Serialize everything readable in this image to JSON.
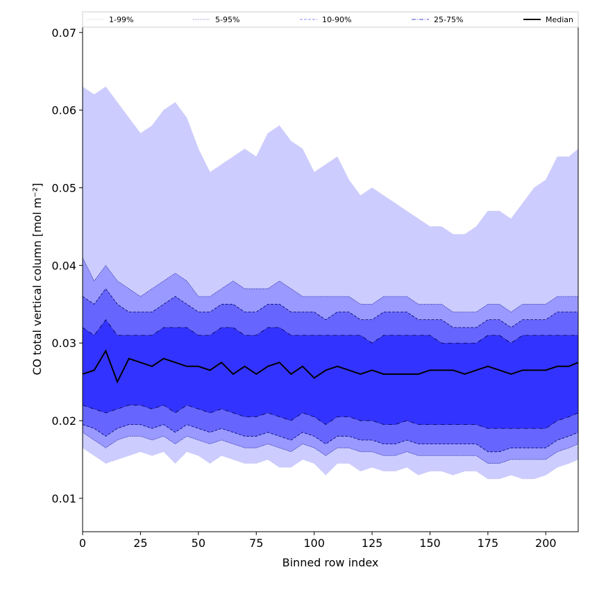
{
  "chart_data": {
    "type": "area",
    "title": "",
    "xlabel": "Binned row index",
    "ylabel": "CO total vertical column [mol m⁻²]",
    "xlim": [
      0,
      214
    ],
    "ylim": [
      0.0057,
      0.0707
    ],
    "x_ticks": [
      0,
      25,
      50,
      75,
      100,
      125,
      150,
      175,
      200
    ],
    "x_tick_labels": [
      "0",
      "25",
      "50",
      "75",
      "100",
      "125",
      "150",
      "175",
      "200"
    ],
    "y_ticks": [
      0.01,
      0.02,
      0.03,
      0.04,
      0.05,
      0.06,
      0.07
    ],
    "y_tick_labels": [
      "0.01",
      "0.02",
      "0.03",
      "0.04",
      "0.05",
      "0.06",
      "0.07"
    ],
    "grid": false,
    "legend_position": "top",
    "legend": [
      {
        "label": "1-99%",
        "color": "#ccccff",
        "style": "dotted"
      },
      {
        "label": "5-95%",
        "color": "#9999ff",
        "style": "dotted"
      },
      {
        "label": "10-90%",
        "color": "#6666ff",
        "style": "dashed"
      },
      {
        "label": "25-75%",
        "color": "#3333ff",
        "style": "dashdot"
      },
      {
        "label": "Median",
        "color": "#000000",
        "style": "solid"
      }
    ],
    "colors": {
      "band_1_99": "#ccccff",
      "band_5_95": "#9999ff",
      "band_10_90": "#6666ff",
      "band_25_75": "#3333ff",
      "median": "#000000"
    },
    "bin_width": 5,
    "x": [
      0,
      5,
      10,
      15,
      20,
      25,
      30,
      35,
      40,
      45,
      50,
      55,
      60,
      65,
      70,
      75,
      80,
      85,
      90,
      95,
      100,
      105,
      110,
      115,
      120,
      125,
      130,
      135,
      140,
      145,
      150,
      155,
      160,
      165,
      170,
      175,
      180,
      185,
      190,
      195,
      200,
      205,
      210,
      214
    ],
    "series": [
      {
        "name": "1-99%",
        "lower": [
          0.0165,
          0.0155,
          0.0145,
          0.015,
          0.0155,
          0.016,
          0.0155,
          0.016,
          0.0145,
          0.016,
          0.0155,
          0.0145,
          0.0155,
          0.015,
          0.0145,
          0.0145,
          0.015,
          0.014,
          0.014,
          0.015,
          0.0145,
          0.013,
          0.0145,
          0.0145,
          0.0135,
          0.014,
          0.0135,
          0.0135,
          0.014,
          0.013,
          0.0135,
          0.0135,
          0.013,
          0.0135,
          0.0135,
          0.0125,
          0.0125,
          0.013,
          0.0125,
          0.0125,
          0.013,
          0.014,
          0.0145,
          0.015
        ],
        "upper": [
          0.063,
          0.062,
          0.063,
          0.061,
          0.059,
          0.057,
          0.058,
          0.06,
          0.061,
          0.059,
          0.055,
          0.052,
          0.053,
          0.054,
          0.055,
          0.054,
          0.057,
          0.058,
          0.056,
          0.055,
          0.052,
          0.053,
          0.054,
          0.051,
          0.049,
          0.05,
          0.049,
          0.048,
          0.047,
          0.046,
          0.045,
          0.045,
          0.044,
          0.044,
          0.045,
          0.047,
          0.047,
          0.046,
          0.048,
          0.05,
          0.051,
          0.054,
          0.054,
          0.055
        ]
      },
      {
        "name": "5-95%",
        "lower": [
          0.0185,
          0.0175,
          0.0165,
          0.0175,
          0.018,
          0.018,
          0.0175,
          0.018,
          0.017,
          0.018,
          0.0175,
          0.017,
          0.0175,
          0.017,
          0.0165,
          0.0165,
          0.017,
          0.0165,
          0.016,
          0.017,
          0.0165,
          0.0155,
          0.0165,
          0.0165,
          0.016,
          0.016,
          0.0155,
          0.0155,
          0.016,
          0.0155,
          0.0155,
          0.0155,
          0.0155,
          0.0155,
          0.0155,
          0.0145,
          0.0145,
          0.015,
          0.015,
          0.015,
          0.015,
          0.016,
          0.0165,
          0.017
        ],
        "upper": [
          0.041,
          0.038,
          0.04,
          0.038,
          0.037,
          0.036,
          0.037,
          0.038,
          0.039,
          0.038,
          0.036,
          0.036,
          0.037,
          0.038,
          0.037,
          0.037,
          0.037,
          0.038,
          0.037,
          0.036,
          0.036,
          0.036,
          0.036,
          0.036,
          0.035,
          0.035,
          0.036,
          0.036,
          0.036,
          0.035,
          0.035,
          0.035,
          0.034,
          0.034,
          0.034,
          0.035,
          0.035,
          0.034,
          0.035,
          0.035,
          0.035,
          0.036,
          0.036,
          0.036
        ]
      },
      {
        "name": "10-90%",
        "lower": [
          0.0195,
          0.019,
          0.018,
          0.019,
          0.0195,
          0.0195,
          0.019,
          0.0195,
          0.0185,
          0.0195,
          0.019,
          0.0185,
          0.019,
          0.0185,
          0.018,
          0.018,
          0.0185,
          0.018,
          0.0175,
          0.0185,
          0.018,
          0.017,
          0.018,
          0.018,
          0.0175,
          0.0175,
          0.017,
          0.017,
          0.0175,
          0.017,
          0.017,
          0.017,
          0.017,
          0.017,
          0.017,
          0.016,
          0.016,
          0.0165,
          0.0165,
          0.0165,
          0.0165,
          0.0175,
          0.018,
          0.0185
        ],
        "upper": [
          0.036,
          0.035,
          0.037,
          0.035,
          0.034,
          0.034,
          0.034,
          0.035,
          0.036,
          0.035,
          0.034,
          0.034,
          0.035,
          0.035,
          0.034,
          0.034,
          0.035,
          0.035,
          0.034,
          0.034,
          0.034,
          0.033,
          0.034,
          0.034,
          0.033,
          0.033,
          0.034,
          0.034,
          0.034,
          0.033,
          0.033,
          0.033,
          0.032,
          0.032,
          0.032,
          0.033,
          0.033,
          0.032,
          0.033,
          0.033,
          0.033,
          0.034,
          0.034,
          0.034
        ]
      },
      {
        "name": "25-75%",
        "lower": [
          0.022,
          0.0215,
          0.021,
          0.0215,
          0.022,
          0.022,
          0.0215,
          0.022,
          0.021,
          0.022,
          0.0215,
          0.021,
          0.0215,
          0.021,
          0.0205,
          0.0205,
          0.021,
          0.0205,
          0.02,
          0.021,
          0.0205,
          0.0195,
          0.0205,
          0.0205,
          0.02,
          0.02,
          0.0195,
          0.0195,
          0.02,
          0.0195,
          0.0195,
          0.0195,
          0.0195,
          0.0195,
          0.0195,
          0.019,
          0.019,
          0.019,
          0.019,
          0.019,
          0.019,
          0.02,
          0.0205,
          0.021
        ],
        "upper": [
          0.032,
          0.031,
          0.033,
          0.031,
          0.031,
          0.031,
          0.031,
          0.032,
          0.032,
          0.032,
          0.031,
          0.031,
          0.032,
          0.032,
          0.031,
          0.031,
          0.032,
          0.032,
          0.031,
          0.031,
          0.031,
          0.031,
          0.031,
          0.031,
          0.031,
          0.03,
          0.031,
          0.031,
          0.031,
          0.031,
          0.031,
          0.03,
          0.03,
          0.03,
          0.03,
          0.031,
          0.031,
          0.03,
          0.031,
          0.031,
          0.031,
          0.031,
          0.031,
          0.031
        ]
      },
      {
        "name": "Median",
        "values": [
          0.026,
          0.0265,
          0.029,
          0.025,
          0.028,
          0.0275,
          0.027,
          0.028,
          0.0275,
          0.027,
          0.027,
          0.0265,
          0.0275,
          0.026,
          0.027,
          0.026,
          0.027,
          0.0275,
          0.026,
          0.027,
          0.0255,
          0.0265,
          0.027,
          0.0265,
          0.026,
          0.0265,
          0.026,
          0.026,
          0.026,
          0.026,
          0.0265,
          0.0265,
          0.0265,
          0.026,
          0.0265,
          0.027,
          0.0265,
          0.026,
          0.0265,
          0.0265,
          0.0265,
          0.027,
          0.027,
          0.0275
        ]
      }
    ]
  }
}
